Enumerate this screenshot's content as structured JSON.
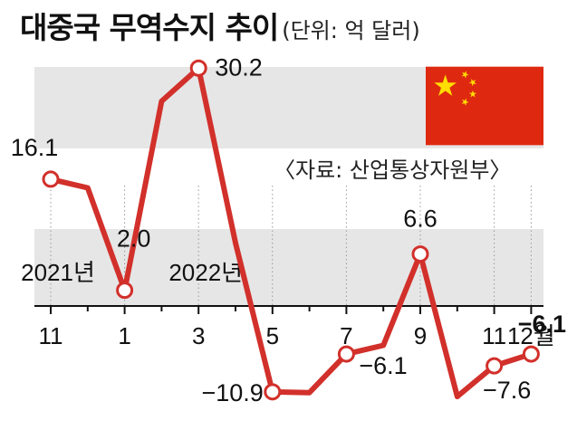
{
  "title": "대중국 무역수지 추이",
  "unit": "(단위: 억 달러)",
  "source": "〈자료: 산업통상자원부〉",
  "colors": {
    "line": "#d2302b",
    "band": "#e6e6e6",
    "axis": "#111111",
    "flag_red": "#de2910",
    "flag_star": "#ffde00"
  },
  "icons": {
    "flag": "china-flag-icon"
  },
  "chart_data": {
    "type": "line",
    "title": "대중국 무역수지 추이",
    "subtitle": "(단위: 억 달러)",
    "source": "〈자료: 산업통상자원부〉",
    "ylim": [
      -12,
      33
    ],
    "x": [
      "2021-11",
      "2021-12",
      "2022-01",
      "2022-02",
      "2022-03",
      "2022-04",
      "2022-05",
      "2022-06",
      "2022-07",
      "2022-08",
      "2022-09",
      "2022-10",
      "2022-11",
      "2022-12"
    ],
    "values": [
      16.1,
      15.0,
      2.0,
      26.0,
      30.2,
      8.0,
      -10.9,
      -11.0,
      -6.1,
      -5.0,
      6.6,
      -11.5,
      -7.6,
      -6.1
    ],
    "tick_labels": [
      {
        "x": "2021-11",
        "text": "11"
      },
      {
        "x": "2022-01",
        "text": "1"
      },
      {
        "x": "2022-03",
        "text": "3"
      },
      {
        "x": "2022-05",
        "text": "5"
      },
      {
        "x": "2022-07",
        "text": "7"
      },
      {
        "x": "2022-09",
        "text": "9"
      },
      {
        "x": "2022-11",
        "text": "11"
      },
      {
        "x": "2022-12",
        "text": "12월"
      }
    ],
    "year_labels": [
      {
        "x": "2021-11",
        "text": "2021년"
      },
      {
        "x": "2022-03",
        "text": "2022년"
      }
    ],
    "data_labels": [
      {
        "x": "2021-11",
        "text": "16.1"
      },
      {
        "x": "2022-01",
        "text": "2.0"
      },
      {
        "x": "2022-03",
        "text": "30.2"
      },
      {
        "x": "2022-05",
        "text": "−10.9"
      },
      {
        "x": "2022-07",
        "text": "−6.1"
      },
      {
        "x": "2022-09",
        "text": "6.6"
      },
      {
        "x": "2022-11",
        "text": "−7.6"
      },
      {
        "x": "2022-12",
        "text": "−6.1",
        "emphasis": true
      }
    ],
    "grid": false,
    "legend": "none"
  }
}
